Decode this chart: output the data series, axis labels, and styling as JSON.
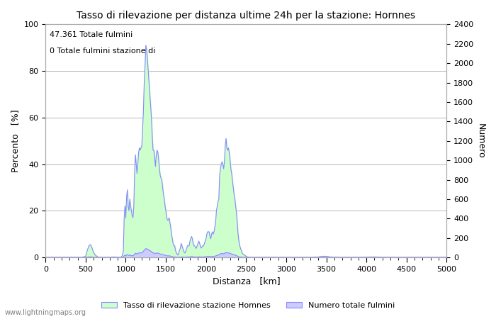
{
  "title": "Tasso di rilevazione per distanza ultime 24h per la stazione: Hornnes",
  "xlabel": "Distanza   [km]",
  "ylabel_left": "Percento   [%]",
  "ylabel_right": "Numero",
  "annotation_line1": "47.361 Totale fulmini",
  "annotation_line2": "0 Totale fulmini stazione di",
  "legend_label1": "Tasso di rilevazione stazione Homnes",
  "legend_label2": "Numero totale fulmini",
  "watermark": "www.lightningmaps.org",
  "xlim": [
    0,
    5000
  ],
  "ylim_left": [
    0,
    100
  ],
  "ylim_right": [
    0,
    2400
  ],
  "yticks_left": [
    0,
    20,
    40,
    60,
    80,
    100
  ],
  "yticks_right": [
    0,
    200,
    400,
    600,
    800,
    1000,
    1200,
    1400,
    1600,
    1800,
    2000,
    2200,
    2400
  ],
  "xticks": [
    0,
    500,
    1000,
    1500,
    2000,
    2500,
    3000,
    3500,
    4000,
    4500,
    5000
  ],
  "grid_color": "#aaaaaa",
  "bg_color": "#ffffff",
  "line_color": "#8888ff",
  "fill_color_detection": "#ccffcc",
  "fill_color_total": "#ccccff",
  "detection_data": [
    [
      0,
      0
    ],
    [
      50,
      0
    ],
    [
      100,
      0
    ],
    [
      150,
      0
    ],
    [
      200,
      0
    ],
    [
      250,
      0
    ],
    [
      300,
      0
    ],
    [
      350,
      0
    ],
    [
      400,
      0
    ],
    [
      450,
      0
    ],
    [
      500,
      0.5
    ],
    [
      520,
      3
    ],
    [
      540,
      5
    ],
    [
      560,
      5.5
    ],
    [
      580,
      4
    ],
    [
      600,
      2
    ],
    [
      620,
      1
    ],
    [
      640,
      0.5
    ],
    [
      660,
      0
    ],
    [
      700,
      0
    ],
    [
      750,
      0
    ],
    [
      800,
      0
    ],
    [
      850,
      0.2
    ],
    [
      900,
      0
    ],
    [
      920,
      0
    ],
    [
      940,
      0
    ],
    [
      950,
      0.5
    ],
    [
      960,
      1
    ],
    [
      970,
      3
    ],
    [
      980,
      17
    ],
    [
      990,
      22
    ],
    [
      995,
      21
    ],
    [
      1000,
      17
    ],
    [
      1010,
      26
    ],
    [
      1020,
      29
    ],
    [
      1030,
      22
    ],
    [
      1040,
      20
    ],
    [
      1050,
      25
    ],
    [
      1060,
      22
    ],
    [
      1070,
      20
    ],
    [
      1080,
      18
    ],
    [
      1090,
      17
    ],
    [
      1100,
      22
    ],
    [
      1110,
      36
    ],
    [
      1120,
      44
    ],
    [
      1130,
      40
    ],
    [
      1140,
      36
    ],
    [
      1150,
      40
    ],
    [
      1160,
      45
    ],
    [
      1170,
      47
    ],
    [
      1180,
      46
    ],
    [
      1190,
      47
    ],
    [
      1200,
      48
    ],
    [
      1210,
      55
    ],
    [
      1220,
      63
    ],
    [
      1230,
      75
    ],
    [
      1240,
      82
    ],
    [
      1250,
      91
    ],
    [
      1260,
      89
    ],
    [
      1270,
      85
    ],
    [
      1280,
      80
    ],
    [
      1290,
      75
    ],
    [
      1300,
      70
    ],
    [
      1310,
      65
    ],
    [
      1320,
      60
    ],
    [
      1330,
      52
    ],
    [
      1340,
      46
    ],
    [
      1350,
      46
    ],
    [
      1360,
      43
    ],
    [
      1370,
      39
    ],
    [
      1380,
      44
    ],
    [
      1390,
      46
    ],
    [
      1400,
      45
    ],
    [
      1410,
      42
    ],
    [
      1420,
      38
    ],
    [
      1430,
      35
    ],
    [
      1440,
      34
    ],
    [
      1450,
      33
    ],
    [
      1460,
      30
    ],
    [
      1470,
      27
    ],
    [
      1480,
      25
    ],
    [
      1490,
      22
    ],
    [
      1500,
      20
    ],
    [
      1510,
      17
    ],
    [
      1520,
      16
    ],
    [
      1530,
      16
    ],
    [
      1540,
      17
    ],
    [
      1550,
      15
    ],
    [
      1560,
      13
    ],
    [
      1570,
      10
    ],
    [
      1580,
      8
    ],
    [
      1590,
      6
    ],
    [
      1600,
      5
    ],
    [
      1610,
      5
    ],
    [
      1620,
      3
    ],
    [
      1630,
      2
    ],
    [
      1640,
      1.5
    ],
    [
      1650,
      1
    ],
    [
      1660,
      2
    ],
    [
      1670,
      3
    ],
    [
      1680,
      4
    ],
    [
      1690,
      6
    ],
    [
      1700,
      5
    ],
    [
      1710,
      4
    ],
    [
      1720,
      3
    ],
    [
      1730,
      2
    ],
    [
      1740,
      2
    ],
    [
      1750,
      3
    ],
    [
      1760,
      4
    ],
    [
      1770,
      5
    ],
    [
      1780,
      5
    ],
    [
      1790,
      5
    ],
    [
      1800,
      7
    ],
    [
      1810,
      8
    ],
    [
      1820,
      9
    ],
    [
      1830,
      8
    ],
    [
      1840,
      6
    ],
    [
      1850,
      5
    ],
    [
      1860,
      5
    ],
    [
      1870,
      4
    ],
    [
      1880,
      4
    ],
    [
      1890,
      5
    ],
    [
      1900,
      6
    ],
    [
      1910,
      7
    ],
    [
      1920,
      6
    ],
    [
      1930,
      5
    ],
    [
      1940,
      4
    ],
    [
      1950,
      4.5
    ],
    [
      1960,
      5
    ],
    [
      1970,
      5
    ],
    [
      1980,
      6
    ],
    [
      1990,
      7
    ],
    [
      2000,
      8
    ],
    [
      2010,
      10
    ],
    [
      2020,
      11
    ],
    [
      2030,
      11
    ],
    [
      2040,
      11
    ],
    [
      2050,
      9
    ],
    [
      2060,
      8
    ],
    [
      2070,
      10
    ],
    [
      2080,
      11
    ],
    [
      2090,
      10
    ],
    [
      2100,
      11
    ],
    [
      2110,
      13
    ],
    [
      2120,
      15
    ],
    [
      2130,
      20
    ],
    [
      2140,
      22
    ],
    [
      2150,
      24
    ],
    [
      2160,
      25
    ],
    [
      2170,
      35
    ],
    [
      2180,
      38
    ],
    [
      2190,
      40
    ],
    [
      2200,
      41
    ],
    [
      2210,
      40
    ],
    [
      2220,
      38
    ],
    [
      2230,
      41
    ],
    [
      2240,
      48
    ],
    [
      2250,
      51
    ],
    [
      2260,
      47
    ],
    [
      2270,
      46
    ],
    [
      2280,
      47
    ],
    [
      2290,
      45
    ],
    [
      2300,
      42
    ],
    [
      2310,
      38
    ],
    [
      2320,
      36
    ],
    [
      2330,
      33
    ],
    [
      2340,
      30
    ],
    [
      2350,
      27
    ],
    [
      2360,
      25
    ],
    [
      2370,
      22
    ],
    [
      2380,
      19
    ],
    [
      2390,
      15
    ],
    [
      2400,
      10
    ],
    [
      2410,
      7
    ],
    [
      2420,
      5
    ],
    [
      2430,
      4
    ],
    [
      2440,
      3
    ],
    [
      2450,
      2
    ],
    [
      2460,
      1.5
    ],
    [
      2480,
      1
    ],
    [
      2500,
      0.5
    ],
    [
      2520,
      0.2
    ],
    [
      2540,
      0.1
    ],
    [
      2560,
      0
    ],
    [
      2600,
      0
    ],
    [
      2700,
      0
    ],
    [
      2800,
      0
    ],
    [
      2900,
      0
    ],
    [
      3000,
      0
    ],
    [
      3100,
      0
    ],
    [
      3200,
      0
    ],
    [
      3300,
      0
    ],
    [
      3400,
      0.2
    ],
    [
      3450,
      0.5
    ],
    [
      3500,
      0.5
    ],
    [
      3550,
      0.2
    ],
    [
      3600,
      0.1
    ],
    [
      3650,
      0
    ],
    [
      3700,
      0
    ],
    [
      3800,
      0
    ],
    [
      3900,
      0
    ],
    [
      4000,
      0.1
    ],
    [
      4050,
      0.2
    ],
    [
      4100,
      0.2
    ],
    [
      4150,
      0.1
    ],
    [
      4200,
      0
    ],
    [
      4300,
      0
    ],
    [
      4400,
      0
    ],
    [
      4500,
      0
    ],
    [
      4600,
      0
    ],
    [
      4700,
      0
    ],
    [
      4800,
      0
    ],
    [
      4900,
      0
    ],
    [
      5000,
      0
    ]
  ],
  "total_data": [
    [
      0,
      0
    ],
    [
      50,
      0
    ],
    [
      100,
      0
    ],
    [
      150,
      0
    ],
    [
      200,
      0
    ],
    [
      250,
      0
    ],
    [
      300,
      0
    ],
    [
      350,
      0
    ],
    [
      400,
      0
    ],
    [
      450,
      0
    ],
    [
      500,
      0.5
    ],
    [
      520,
      3
    ],
    [
      540,
      5
    ],
    [
      560,
      5.5
    ],
    [
      580,
      4
    ],
    [
      600,
      2
    ],
    [
      620,
      1
    ],
    [
      640,
      0.5
    ],
    [
      660,
      0
    ],
    [
      700,
      0
    ],
    [
      750,
      0
    ],
    [
      800,
      0
    ],
    [
      850,
      0.2
    ],
    [
      900,
      0
    ],
    [
      920,
      0
    ],
    [
      940,
      0
    ],
    [
      950,
      0.5
    ],
    [
      960,
      1
    ],
    [
      970,
      3
    ],
    [
      980,
      17
    ],
    [
      990,
      22
    ],
    [
      995,
      21
    ],
    [
      1000,
      17
    ],
    [
      1010,
      26
    ],
    [
      1020,
      29
    ],
    [
      1030,
      22
    ],
    [
      1040,
      20
    ],
    [
      1050,
      25
    ],
    [
      1060,
      22
    ],
    [
      1070,
      20
    ],
    [
      1080,
      18
    ],
    [
      1090,
      17
    ],
    [
      1100,
      22
    ],
    [
      1110,
      36
    ],
    [
      1120,
      44
    ],
    [
      1130,
      40
    ],
    [
      1140,
      36
    ],
    [
      1150,
      40
    ],
    [
      1160,
      45
    ],
    [
      1170,
      47
    ],
    [
      1180,
      46
    ],
    [
      1190,
      47
    ],
    [
      1200,
      48
    ],
    [
      1210,
      55
    ],
    [
      1220,
      63
    ],
    [
      1230,
      75
    ],
    [
      1240,
      82
    ],
    [
      1250,
      91
    ],
    [
      1260,
      89
    ],
    [
      1270,
      85
    ],
    [
      1280,
      80
    ],
    [
      1290,
      75
    ],
    [
      1300,
      70
    ],
    [
      1310,
      65
    ],
    [
      1320,
      60
    ],
    [
      1330,
      52
    ],
    [
      1340,
      46
    ],
    [
      1350,
      46
    ],
    [
      1360,
      43
    ],
    [
      1370,
      39
    ],
    [
      1380,
      44
    ],
    [
      1390,
      46
    ],
    [
      1400,
      45
    ],
    [
      1410,
      42
    ],
    [
      1420,
      38
    ],
    [
      1430,
      35
    ],
    [
      1440,
      34
    ],
    [
      1450,
      33
    ],
    [
      1460,
      30
    ],
    [
      1470,
      27
    ],
    [
      1480,
      25
    ],
    [
      1490,
      22
    ],
    [
      1500,
      20
    ],
    [
      1510,
      17
    ],
    [
      1520,
      16
    ],
    [
      1530,
      16
    ],
    [
      1540,
      17
    ],
    [
      1550,
      15
    ],
    [
      1560,
      13
    ],
    [
      1570,
      10
    ],
    [
      1580,
      8
    ],
    [
      1590,
      6
    ],
    [
      1600,
      5
    ],
    [
      1610,
      5
    ],
    [
      1620,
      3
    ],
    [
      1630,
      2
    ],
    [
      1640,
      1.5
    ],
    [
      1650,
      1
    ],
    [
      1660,
      2
    ],
    [
      1670,
      3
    ],
    [
      1680,
      4
    ],
    [
      1690,
      6
    ],
    [
      1700,
      5
    ],
    [
      1710,
      4
    ],
    [
      1720,
      3
    ],
    [
      1730,
      2
    ],
    [
      1740,
      2
    ],
    [
      1750,
      3
    ],
    [
      1760,
      4
    ],
    [
      1770,
      5
    ],
    [
      1780,
      5
    ],
    [
      1790,
      5
    ],
    [
      1800,
      7
    ],
    [
      1810,
      8
    ],
    [
      1820,
      9
    ],
    [
      1830,
      8
    ],
    [
      1840,
      6
    ],
    [
      1850,
      5
    ],
    [
      1860,
      5
    ],
    [
      1870,
      4
    ],
    [
      1880,
      4
    ],
    [
      1890,
      5
    ],
    [
      1900,
      6
    ],
    [
      1910,
      7
    ],
    [
      1920,
      6
    ],
    [
      1930,
      5
    ],
    [
      1940,
      4
    ],
    [
      1950,
      4.5
    ],
    [
      1960,
      5
    ],
    [
      1970,
      5
    ],
    [
      1980,
      6
    ],
    [
      1990,
      7
    ],
    [
      2000,
      8
    ],
    [
      2010,
      10
    ],
    [
      2020,
      11
    ],
    [
      2030,
      11
    ],
    [
      2040,
      11
    ],
    [
      2050,
      9
    ],
    [
      2060,
      8
    ],
    [
      2070,
      10
    ],
    [
      2080,
      11
    ],
    [
      2090,
      10
    ],
    [
      2100,
      11
    ],
    [
      2110,
      13
    ],
    [
      2120,
      15
    ],
    [
      2130,
      20
    ],
    [
      2140,
      22
    ],
    [
      2150,
      24
    ],
    [
      2160,
      25
    ],
    [
      2170,
      35
    ],
    [
      2180,
      38
    ],
    [
      2190,
      40
    ],
    [
      2200,
      41
    ],
    [
      2210,
      40
    ],
    [
      2220,
      38
    ],
    [
      2230,
      41
    ],
    [
      2240,
      48
    ],
    [
      2250,
      51
    ],
    [
      2260,
      47
    ],
    [
      2270,
      46
    ],
    [
      2280,
      47
    ],
    [
      2290,
      45
    ],
    [
      2300,
      42
    ],
    [
      2310,
      38
    ],
    [
      2320,
      36
    ],
    [
      2330,
      33
    ],
    [
      2340,
      30
    ],
    [
      2350,
      27
    ],
    [
      2360,
      25
    ],
    [
      2370,
      22
    ],
    [
      2380,
      19
    ],
    [
      2390,
      15
    ],
    [
      2400,
      10
    ],
    [
      2410,
      7
    ],
    [
      2420,
      5
    ],
    [
      2430,
      4
    ],
    [
      2440,
      3
    ],
    [
      2450,
      2
    ],
    [
      2460,
      1.5
    ],
    [
      2480,
      1
    ],
    [
      2500,
      0.5
    ],
    [
      2520,
      0.2
    ],
    [
      2540,
      0.1
    ],
    [
      2560,
      0
    ],
    [
      2600,
      0
    ],
    [
      2700,
      0
    ],
    [
      2800,
      0
    ],
    [
      2900,
      0
    ],
    [
      3000,
      0
    ],
    [
      3100,
      0
    ],
    [
      3200,
      0
    ],
    [
      3300,
      0
    ],
    [
      3400,
      0.2
    ],
    [
      3450,
      0.5
    ],
    [
      3500,
      0.5
    ],
    [
      3550,
      0.2
    ],
    [
      3600,
      0.1
    ],
    [
      3650,
      0
    ],
    [
      3700,
      0
    ],
    [
      3800,
      0
    ],
    [
      3900,
      0
    ],
    [
      4000,
      0.1
    ],
    [
      4050,
      0.2
    ],
    [
      4100,
      0.2
    ],
    [
      4150,
      0.1
    ],
    [
      4200,
      0
    ],
    [
      4300,
      0
    ],
    [
      4400,
      0
    ],
    [
      4500,
      0
    ],
    [
      4600,
      0
    ],
    [
      4700,
      0
    ],
    [
      4800,
      0
    ],
    [
      4900,
      0
    ],
    [
      5000,
      0
    ]
  ]
}
